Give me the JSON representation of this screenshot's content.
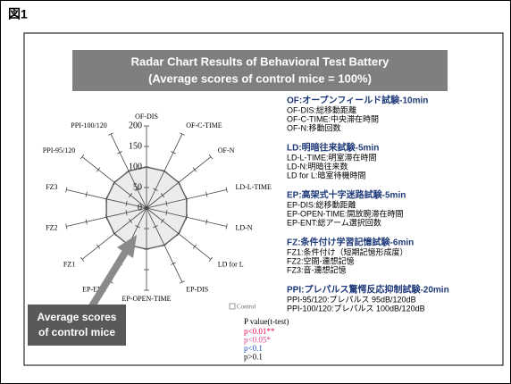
{
  "figure_label": "図1",
  "chart_data": {
    "type": "radar",
    "title": "Radar Chart Results of Behavioral Test Battery",
    "subtitle": "(Average scores of control mice = 100%)",
    "categories": [
      "OF-DIS",
      "OF-C-TIME",
      "OF-N",
      "LD-L-TIME",
      "LD-N",
      "LD for L",
      "EP-DIS",
      "EP-OPEN-TIME",
      "EP-ENT",
      "FZ1",
      "FZ2",
      "FZ3",
      "PPI-95/120",
      "PPI-100/120"
    ],
    "series": [
      {
        "name": "Control",
        "color": "#9a9a9a",
        "values": [
          100,
          100,
          100,
          100,
          100,
          100,
          100,
          100,
          100,
          100,
          100,
          100,
          100,
          100
        ]
      }
    ],
    "ylim": [
      0,
      200
    ],
    "yticks": [
      0,
      50,
      100,
      150,
      200
    ],
    "annotation": [
      "Average scores",
      "of control mice"
    ],
    "pvalue_legend": {
      "title": "P value(t-test)",
      "items": [
        {
          "text": "p<0.01**",
          "color": "#e0004e"
        },
        {
          "text": "p<0.05*",
          "color": "#e0408a"
        },
        {
          "text": "p<0.1",
          "color": "#2050c0"
        },
        {
          "text": "p>0.1",
          "color": "#000000"
        }
      ]
    }
  },
  "notes": [
    {
      "heading": "OF:オープンフィールド試験-10min",
      "lines": [
        "OF-DIS:総移動距離",
        "OF-C-TIME:中央滞在時間",
        "OF-N:移動回数"
      ]
    },
    {
      "heading": "LD:明暗往来試験-5min",
      "lines": [
        "LD-L-TIME:明室滞在時間",
        "LD-N:明暗往来数",
        "LD for L:暗室待機時間"
      ]
    },
    {
      "heading": "EP:高架式十字迷路試験-5min",
      "lines": [
        "EP-DIS:総移動距離",
        "EP-OPEN-TIME:開放腕滞在時間",
        "EP-ENT:総アーム選択回数"
      ]
    },
    {
      "heading": "FZ:条件付け学習記憶試験-6min",
      "lines": [
        "FZ1:条件付け（短期記憶形成度）",
        "FZ2:空間-連想記憶",
        "FZ3:音-連想記憶"
      ]
    },
    {
      "heading": "PPI:プレパルス驚愕反応抑制試験-20min",
      "lines": [
        "PPI-95/120:プレパルス 95dB/120dB",
        "PPI-100/120:プレパルス 100dB/120dB"
      ]
    }
  ]
}
